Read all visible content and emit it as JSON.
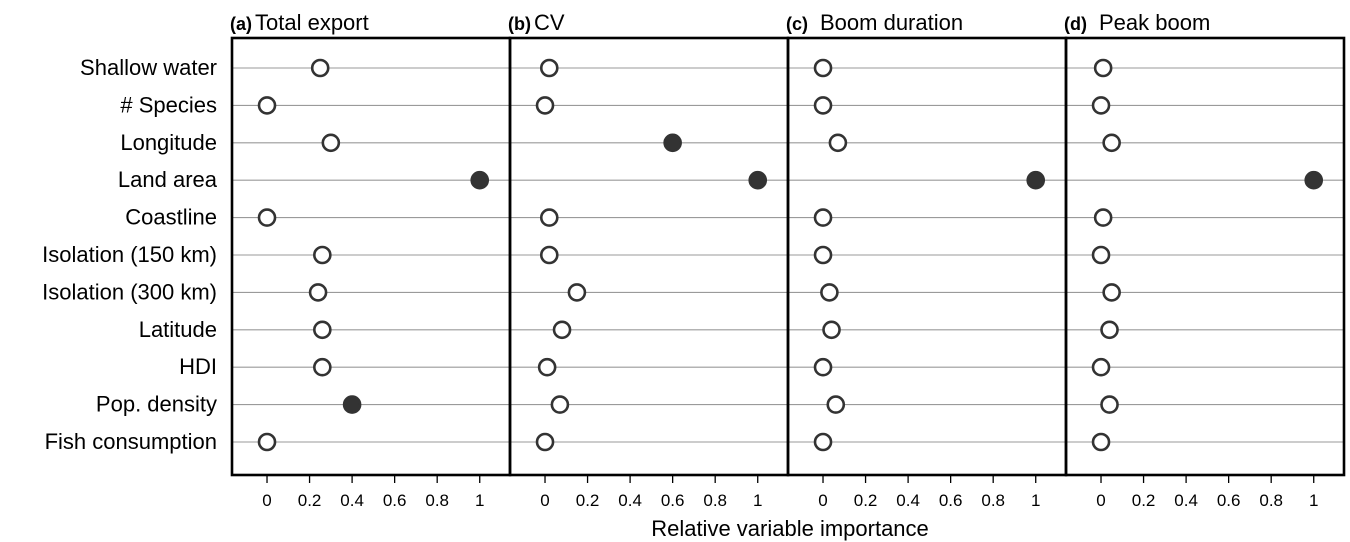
{
  "chart_data": {
    "type": "scatter",
    "xlabel": "Relative variable importance",
    "xlim": [
      -0.08,
      1.1
    ],
    "xticks": [
      0,
      0.2,
      0.4,
      0.6,
      0.8,
      1
    ],
    "xtick_labels": [
      "0",
      "0.2",
      "0.4",
      "0.6",
      "0.8",
      "1"
    ],
    "categories": [
      "Shallow water",
      "# Species",
      "Longitude",
      "Land area",
      "Coastline",
      "Isolation (150 km)",
      "Isolation (300 km)",
      "Latitude",
      "HDI",
      "Pop. density",
      "Fish consumption"
    ],
    "grid": "horizontal",
    "marker_colors": {
      "open_edge": "#333333",
      "filled": "#333333",
      "open_fill": "#ffffff"
    },
    "panels": [
      {
        "letter": "(a)",
        "title": "Total export",
        "values": [
          0.25,
          0.0,
          0.3,
          1.0,
          0.0,
          0.26,
          0.24,
          0.26,
          0.26,
          0.4,
          0.0
        ],
        "filled": [
          false,
          false,
          false,
          true,
          false,
          false,
          false,
          false,
          false,
          true,
          false
        ]
      },
      {
        "letter": "(b)",
        "title": "CV",
        "values": [
          0.02,
          0.0,
          0.6,
          1.0,
          0.02,
          0.02,
          0.15,
          0.08,
          0.01,
          0.07,
          0.0
        ],
        "filled": [
          false,
          false,
          true,
          true,
          false,
          false,
          false,
          false,
          false,
          false,
          false
        ]
      },
      {
        "letter": "(c)",
        "title": "Boom duration",
        "values": [
          0.0,
          0.0,
          0.07,
          1.0,
          0.0,
          0.0,
          0.03,
          0.04,
          0.0,
          0.06,
          0.0
        ],
        "filled": [
          false,
          false,
          false,
          true,
          false,
          false,
          false,
          false,
          false,
          false,
          false
        ]
      },
      {
        "letter": "(d)",
        "title": "Peak boom",
        "values": [
          0.01,
          0.0,
          0.05,
          1.0,
          0.01,
          0.0,
          0.05,
          0.04,
          0.0,
          0.04,
          0.0
        ],
        "filled": [
          false,
          false,
          false,
          true,
          false,
          false,
          false,
          false,
          false,
          false,
          false
        ]
      }
    ]
  }
}
